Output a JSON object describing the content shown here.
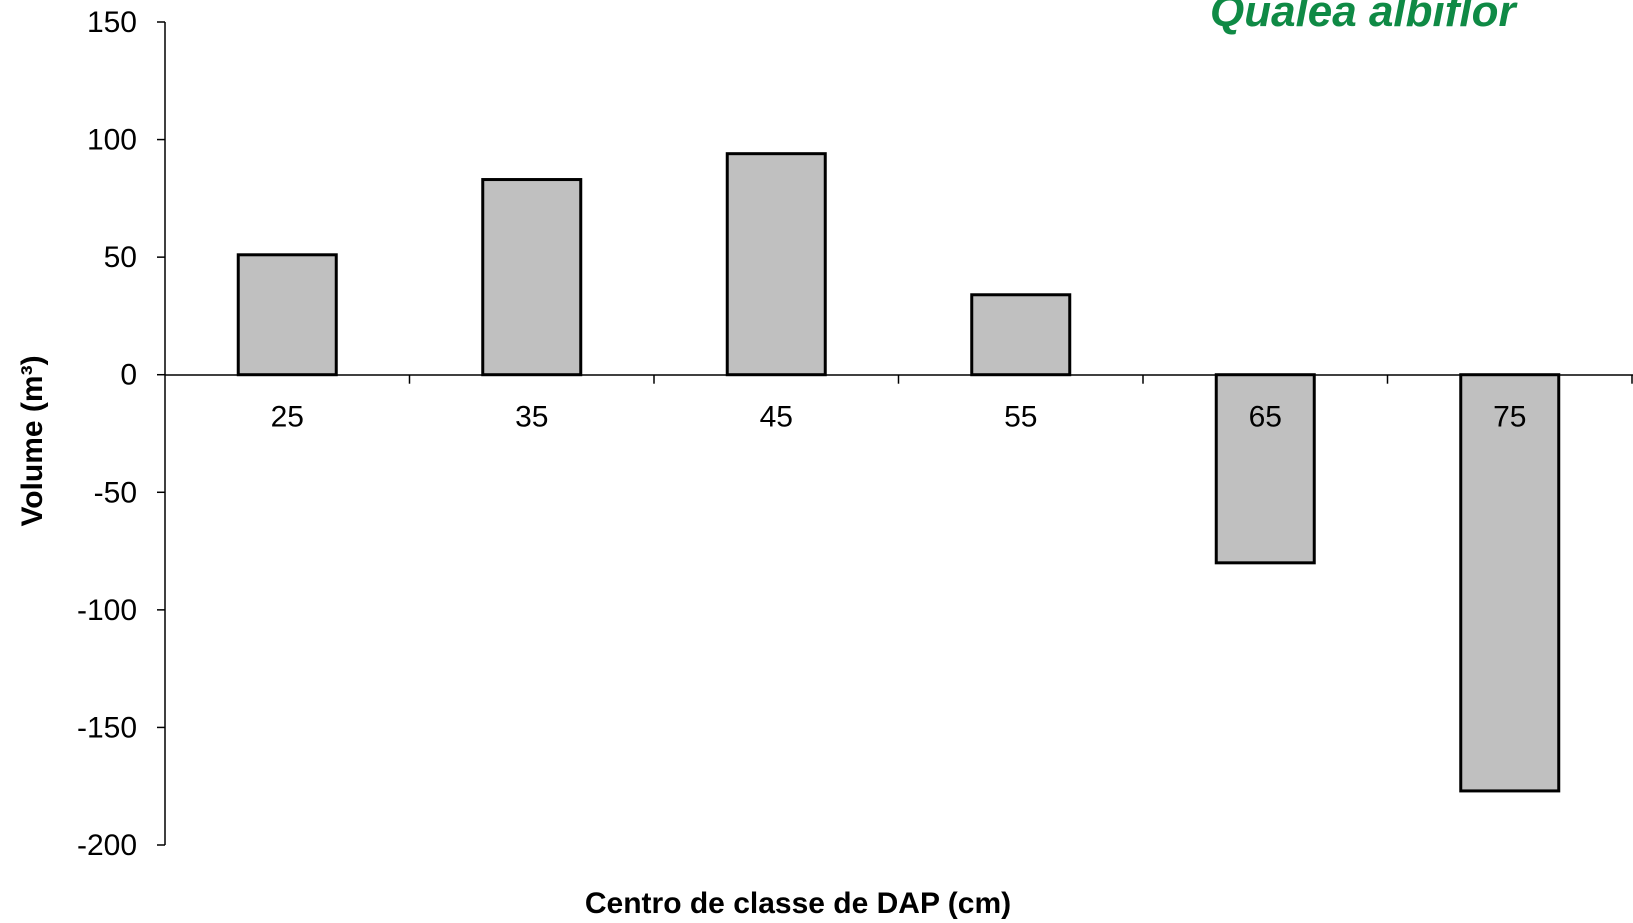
{
  "chart_data": {
    "type": "bar",
    "title": "Qualea albiflor",
    "categories": [
      "25",
      "35",
      "45",
      "55",
      "65",
      "75"
    ],
    "values": [
      51,
      83,
      94,
      34,
      -80,
      -177
    ],
    "xlabel": "Centro de classe de DAP (cm)",
    "ylabel": "Volume (m³)",
    "ylim": [
      -200,
      150
    ],
    "yticks": [
      "150",
      "100",
      "50",
      "0",
      "-50",
      "-100",
      "-150",
      "-200"
    ],
    "grid": false,
    "bar_color": "#c0c0c0",
    "bar_edge_color": "#000000",
    "title_color": "#0f8a45"
  }
}
